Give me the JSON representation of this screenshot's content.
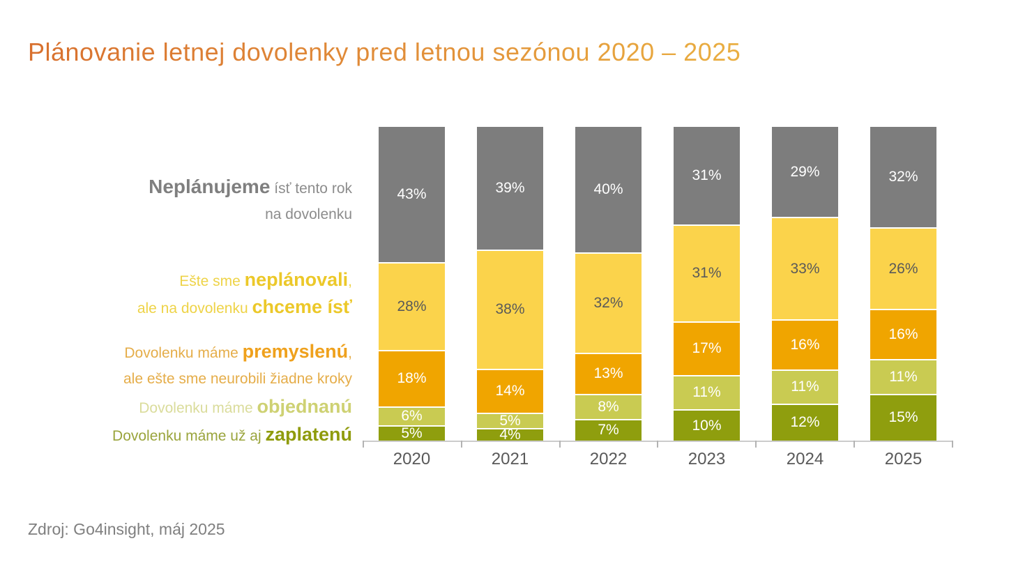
{
  "title": "Plánovanie letnej dovolenky pred letnou sezónou 2020 – 2025",
  "source": "Zdroj: Go4insight, máj 2025",
  "colors": {
    "title_gradient_left": "#d8702e",
    "title_gradient_right": "#eec34b",
    "axis_line": "#cccccc",
    "year_label": "#595959"
  },
  "side_labels": {
    "gray": {
      "bold": "Neplánujeme",
      "rest": " ísť tento rok",
      "line2": "na dovolenku"
    },
    "yellow": {
      "pre": "Ešte sme ",
      "bold": "neplánovali",
      "comma": ",",
      "pre2": "ale na dovolenku ",
      "bold2": "chceme ísť"
    },
    "orange": {
      "pre": "Dovolenku máme ",
      "bold": "premyslenú",
      "comma": ",",
      "line2": "ale ešte sme neurobili žiadne kroky"
    },
    "green": {
      "pre": "Dovolenku máme ",
      "bold": "objednanú"
    },
    "olive": {
      "pre": "Dovolenku máme už aj ",
      "bold": "zaplatenú"
    }
  },
  "chart_data": {
    "type": "bar",
    "stacked": true,
    "orientation": "vertical",
    "ylim": [
      0,
      100
    ],
    "grid": false,
    "legend_position": "left-side text labels",
    "value_suffix": "%",
    "categories": [
      "2020",
      "2021",
      "2022",
      "2023",
      "2024",
      "2025"
    ],
    "series": [
      {
        "id": "neplanujeme",
        "name": "Neplánujeme ísť tento rok na dovolenku",
        "color": "#7d7d7d",
        "label_color": "#ffffff",
        "values": [
          43,
          39,
          40,
          31,
          29,
          32
        ]
      },
      {
        "id": "neplanovali-chceme-ist",
        "name": "Ešte sme neplánovali, ale na dovolenku chceme ísť",
        "color": "#fbd34b",
        "label_color": "#595959",
        "values": [
          28,
          38,
          32,
          31,
          33,
          26
        ]
      },
      {
        "id": "premyslenu",
        "name": "Dovolenku máme premyslenú, ale ešte sme neurobili žiadne kroky",
        "color": "#f0a500",
        "label_color": "#ffffff",
        "values": [
          18,
          14,
          13,
          17,
          16,
          16
        ]
      },
      {
        "id": "objednanu",
        "name": "Dovolenku máme objednanú",
        "color": "#c9cb52",
        "label_color": "#ffffff",
        "values": [
          6,
          5,
          8,
          11,
          11,
          11
        ]
      },
      {
        "id": "zaplatenu",
        "name": "Dovolenku máme už aj zaplatenú",
        "color": "#8f9e0e",
        "label_color": "#ffffff",
        "values": [
          5,
          4,
          7,
          10,
          12,
          15
        ]
      }
    ]
  }
}
